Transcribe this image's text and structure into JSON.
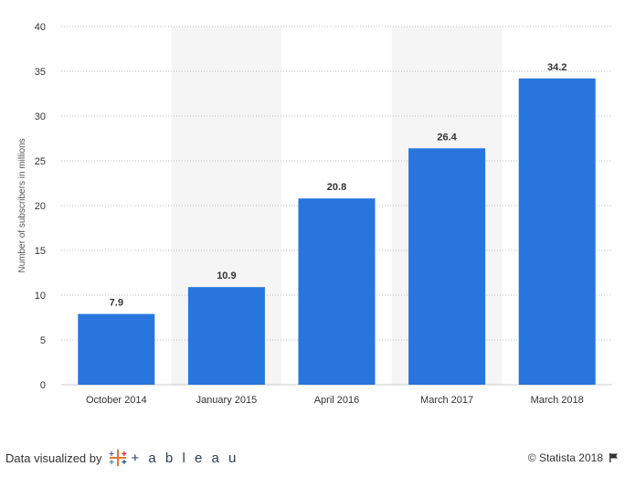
{
  "chart_data": {
    "type": "bar",
    "categories": [
      "October 2014",
      "January 2015",
      "April 2016",
      "March 2017",
      "March 2018"
    ],
    "values": [
      7.9,
      10.9,
      20.8,
      26.4,
      34.2
    ],
    "value_labels": [
      "7.9",
      "10.9",
      "20.8",
      "26.4",
      "34.2"
    ],
    "title": "",
    "xlabel": "",
    "ylabel": "Number of subscribers in millions",
    "ylim": [
      0,
      40
    ],
    "yticks": [
      0,
      5,
      10,
      15,
      20,
      25,
      30,
      35,
      40
    ],
    "grid": true,
    "bar_color": "#2876dd",
    "shaded_band_color": "#f5f5f5",
    "shaded_categories": [
      "January 2015",
      "March 2017"
    ]
  },
  "footer": {
    "attribution_text": "Data visualized by",
    "tableau_wordmark": "+ a b l e a u",
    "copyright": "© Statista 2018",
    "flag_icon": "flag-icon"
  }
}
